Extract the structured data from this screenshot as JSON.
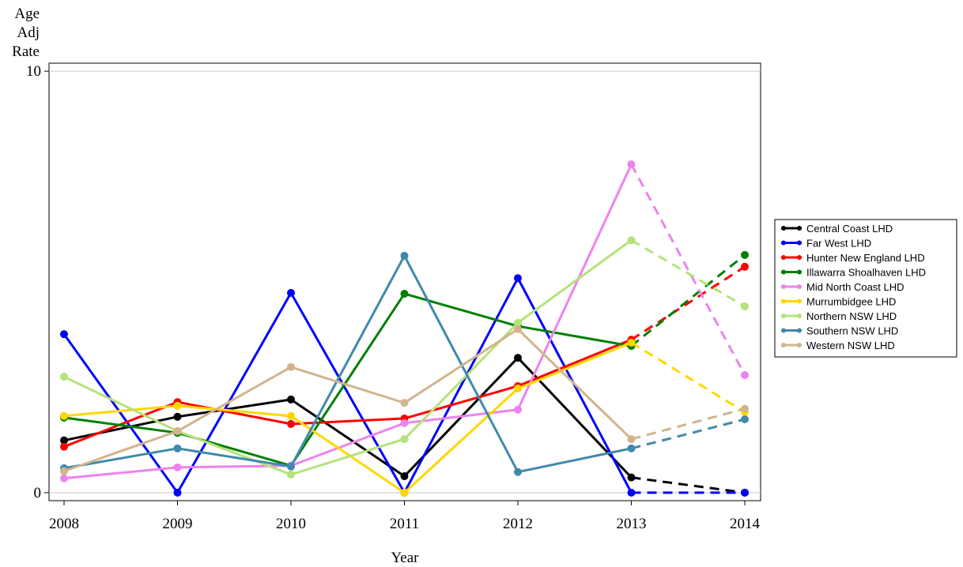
{
  "chart_data": {
    "type": "line",
    "y_label": [
      "Age",
      "Adj",
      "Rate"
    ],
    "x_label": "Year",
    "categories": [
      "2008",
      "2009",
      "2010",
      "2011",
      "2012",
      "2013",
      "2014"
    ],
    "ylim": [
      -0.19,
      10.19
    ],
    "yticks": [
      0,
      10
    ],
    "grid": true,
    "dashed_last_segment": true,
    "legend": "right",
    "series": [
      {
        "name": "Central Coast LHD",
        "color": "#000000",
        "values": [
          1.24,
          1.8,
          2.21,
          0.39,
          3.2,
          0.36,
          0
        ]
      },
      {
        "name": "Far West LHD",
        "color": "#0000ff",
        "values": [
          3.76,
          0,
          4.74,
          0,
          5.09,
          0,
          0
        ]
      },
      {
        "name": "Hunter New England LHD",
        "color": "#ff0000",
        "values": [
          1.09,
          2.15,
          1.63,
          1.76,
          2.53,
          3.63,
          5.36
        ]
      },
      {
        "name": "Illawarra Shoalhaven LHD",
        "color": "#008000",
        "values": [
          1.78,
          1.42,
          0.64,
          4.72,
          3.95,
          3.48,
          5.64
        ]
      },
      {
        "name": "Mid North Coast LHD",
        "color": "#ee82ee",
        "values": [
          0.34,
          0.6,
          0.64,
          1.65,
          1.97,
          7.79,
          2.79
        ]
      },
      {
        "name": "Murrumbidgee LHD",
        "color": "#ffd700",
        "values": [
          1.82,
          2.06,
          1.82,
          0,
          2.47,
          3.56,
          1.91
        ]
      },
      {
        "name": "Northern NSW LHD",
        "color": "#b5e27a",
        "values": [
          2.75,
          1.46,
          0.43,
          1.27,
          4.03,
          5.99,
          4.42
        ]
      },
      {
        "name": "Southern NSW LHD",
        "color": "#3f8aab",
        "values": [
          0.58,
          1.05,
          0.62,
          5.62,
          0.49,
          1.05,
          1.74
        ]
      },
      {
        "name": "Western NSW LHD",
        "color": "#d2b48c",
        "values": [
          0.51,
          1.46,
          2.98,
          2.13,
          3.88,
          1.27,
          1.99
        ]
      }
    ]
  }
}
